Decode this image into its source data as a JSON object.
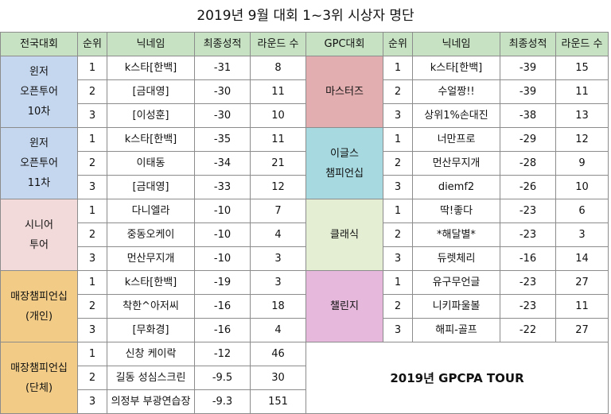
{
  "title": "2019년 9월 대회 1~3위 시상자 명단",
  "headers": {
    "national": [
      "전국대회",
      "순위",
      "닉네임",
      "최종성적",
      "라운드 수"
    ],
    "gpc": [
      "GPC대회",
      "순위",
      "닉네임",
      "최종성적",
      "라운드 수"
    ]
  },
  "national": [
    {
      "name": "윈저\n오픈투어\n10차",
      "rows": [
        {
          "rank": "1",
          "nick": "k스타[한백]",
          "score": "-31",
          "rounds": "8"
        },
        {
          "rank": "2",
          "nick": "[금대영]",
          "score": "-30",
          "rounds": "11"
        },
        {
          "rank": "3",
          "nick": "[이성훈]",
          "score": "-30",
          "rounds": "10"
        }
      ]
    },
    {
      "name": "윈저\n오픈투어\n11차",
      "rows": [
        {
          "rank": "1",
          "nick": "k스타[한백]",
          "score": "-35",
          "rounds": "11"
        },
        {
          "rank": "2",
          "nick": "이태동",
          "score": "-34",
          "rounds": "21"
        },
        {
          "rank": "3",
          "nick": "[금대영]",
          "score": "-33",
          "rounds": "12"
        }
      ]
    },
    {
      "name": "시니어\n투어",
      "rows": [
        {
          "rank": "1",
          "nick": "다니엘라",
          "score": "-10",
          "rounds": "7"
        },
        {
          "rank": "2",
          "nick": "중동오케이",
          "score": "-10",
          "rounds": "4"
        },
        {
          "rank": "3",
          "nick": "먼산무지개",
          "score": "-10",
          "rounds": "3"
        }
      ]
    },
    {
      "name": "매장챔피언십\n(개인)",
      "rows": [
        {
          "rank": "1",
          "nick": "k스타[한백]",
          "score": "-19",
          "rounds": "3"
        },
        {
          "rank": "2",
          "nick": "착한^아저씨",
          "score": "-16",
          "rounds": "18"
        },
        {
          "rank": "3",
          "nick": "[무화경]",
          "score": "-16",
          "rounds": "4"
        }
      ]
    },
    {
      "name": "매장챔피언십\n(단체)",
      "rows": [
        {
          "rank": "1",
          "nick": "신창 케이락",
          "score": "-12",
          "rounds": "46"
        },
        {
          "rank": "2",
          "nick": "길동 성심스크린",
          "score": "-9.5",
          "rounds": "30"
        },
        {
          "rank": "3",
          "nick": "의정부 부광연습장",
          "score": "-9.3",
          "rounds": "151"
        }
      ]
    }
  ],
  "gpc": [
    {
      "name": "마스터즈",
      "rows": [
        {
          "rank": "1",
          "nick": "k스타[한백]",
          "score": "-39",
          "rounds": "15"
        },
        {
          "rank": "2",
          "nick": "수얼짱!!",
          "score": "-39",
          "rounds": "11"
        },
        {
          "rank": "3",
          "nick": "상위1%손대진",
          "score": "-38",
          "rounds": "13"
        }
      ]
    },
    {
      "name": "이글스\n챔피언십",
      "rows": [
        {
          "rank": "1",
          "nick": "너만프로",
          "score": "-29",
          "rounds": "12"
        },
        {
          "rank": "2",
          "nick": "먼산무지개",
          "score": "-28",
          "rounds": "9"
        },
        {
          "rank": "3",
          "nick": "diemf2",
          "score": "-26",
          "rounds": "10"
        }
      ]
    },
    {
      "name": "클래식",
      "rows": [
        {
          "rank": "1",
          "nick": "딱!좋다",
          "score": "-23",
          "rounds": "6"
        },
        {
          "rank": "2",
          "nick": "*해달별*",
          "score": "-23",
          "rounds": "3"
        },
        {
          "rank": "3",
          "nick": "듀렛체리",
          "score": "-16",
          "rounds": "14"
        }
      ]
    },
    {
      "name": "챌린지",
      "rows": [
        {
          "rank": "1",
          "nick": "유구무언글",
          "score": "-23",
          "rounds": "27"
        },
        {
          "rank": "2",
          "nick": "니키파울볼",
          "score": "-23",
          "rounds": "11"
        },
        {
          "rank": "3",
          "nick": "해피-골프",
          "score": "-22",
          "rounds": "27"
        }
      ]
    }
  ],
  "footer": "2019년 GPCPA TOUR",
  "colors": {
    "header": "#c6e2c2",
    "national": [
      "#c5d7ef",
      "#c5d7ef",
      "#f3dada",
      "#f2cc86",
      "#f2cc86"
    ],
    "gpc": [
      "#e3aeb0",
      "#a7d9e0",
      "#e3eed3",
      "#e6b8dc"
    ]
  }
}
